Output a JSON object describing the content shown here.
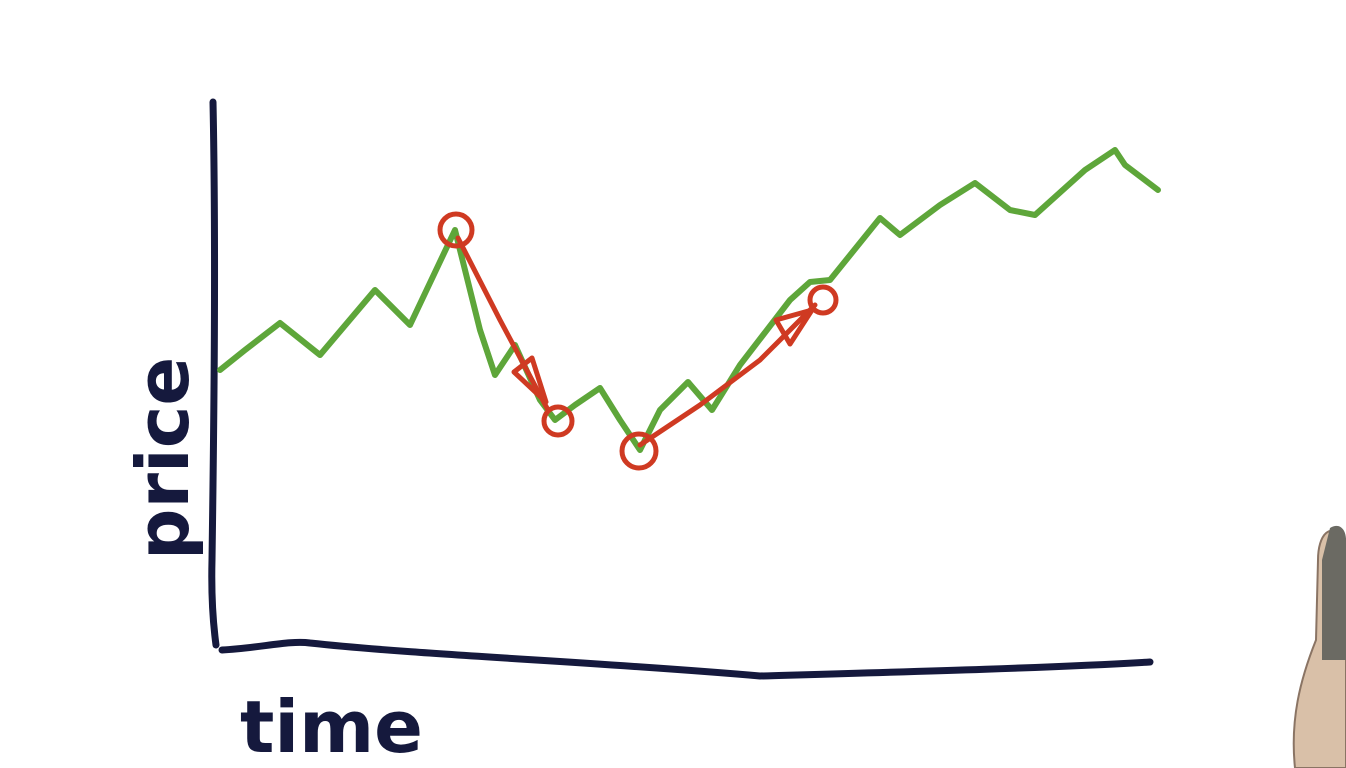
{
  "axes": {
    "y_label": "price",
    "x_label": "time"
  },
  "colors": {
    "axis": "#15193d",
    "price_line": "#5ea63a",
    "trade_marks": "#cf3a22"
  }
}
